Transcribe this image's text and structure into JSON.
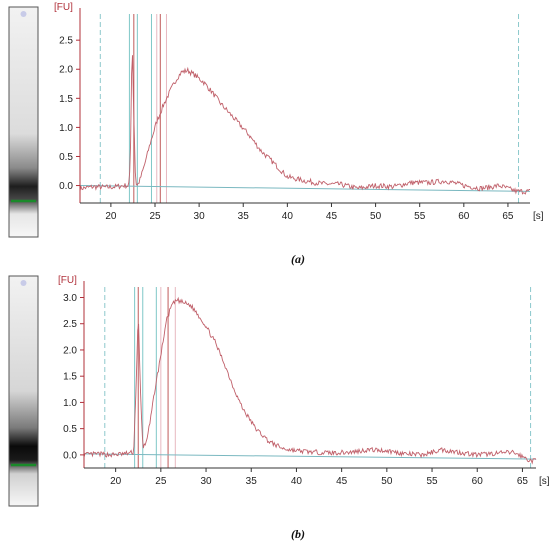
{
  "colors": {
    "trace": "#c0606a",
    "y_axis": "#b0303a",
    "x_axis": "#333333",
    "baseline": "#7ab8c0",
    "marker_teal": "#7fc7c7",
    "marker_red": "#c05a5a",
    "marker_pink": "#e8b8c0",
    "dashed": "#8cc8cc",
    "lane_line": "#1a8a2a"
  },
  "chart_data": [
    {
      "type": "line",
      "caption": "(a)",
      "ylabel": "[FU]",
      "xlabel": "[s]",
      "xlim": [
        16.5,
        67.5
      ],
      "ylim": [
        -0.3,
        2.95
      ],
      "x_ticks": [
        20,
        25,
        30,
        35,
        40,
        45,
        50,
        55,
        60,
        65
      ],
      "y_ticks": [
        "0.0",
        "0.5",
        "1.0",
        "1.5",
        "2.0",
        "2.5"
      ],
      "y_tick_values": [
        0.0,
        0.5,
        1.0,
        1.5,
        2.0,
        2.5
      ],
      "dashed_lines_x": [
        18.8,
        66.2
      ],
      "marker_lines": [
        {
          "x": 22.1,
          "kind": "teal"
        },
        {
          "x": 22.6,
          "kind": "red"
        },
        {
          "x": 23.0,
          "kind": "teal"
        },
        {
          "x": 24.6,
          "kind": "teal"
        },
        {
          "x": 25.2,
          "kind": "pink"
        },
        {
          "x": 25.6,
          "kind": "red"
        },
        {
          "x": 26.3,
          "kind": "pink"
        }
      ],
      "baseline": {
        "x": [
          16.5,
          67.5
        ],
        "y": [
          0.0,
          -0.1
        ]
      },
      "series": [
        {
          "x": [
            16.5,
            18,
            19.5,
            20.5,
            21.5,
            22.0,
            22.2,
            22.4,
            22.6,
            22.8,
            23.0,
            23.3,
            23.8,
            24.5,
            25.2,
            26.0,
            26.8,
            27.5,
            28.0,
            28.7,
            29.5,
            30.5,
            31.5,
            32.5,
            34,
            35.5,
            37,
            38.5,
            40,
            42,
            44,
            46,
            48,
            50,
            52,
            54,
            56,
            58,
            60,
            62,
            64,
            66,
            67.5
          ],
          "y": [
            -0.05,
            -0.02,
            -0.03,
            -0.02,
            0.0,
            0.0,
            0.3,
            2.6,
            1.2,
            0.05,
            0.0,
            0.1,
            0.35,
            0.75,
            1.1,
            1.4,
            1.65,
            1.85,
            1.95,
            1.98,
            1.9,
            1.78,
            1.6,
            1.4,
            1.15,
            0.9,
            0.6,
            0.38,
            0.15,
            0.08,
            0.03,
            0.02,
            -0.05,
            0.0,
            -0.02,
            0.05,
            0.05,
            0.08,
            0.0,
            -0.05,
            0.0,
            -0.1,
            -0.1
          ]
        }
      ]
    },
    {
      "type": "line",
      "caption": "(b)",
      "ylabel": "[FU]",
      "xlabel": "[s]",
      "xlim": [
        16.5,
        66.5
      ],
      "ylim": [
        -0.25,
        3.2
      ],
      "x_ticks": [
        20,
        25,
        30,
        35,
        40,
        45,
        50,
        55,
        60,
        65
      ],
      "y_ticks": [
        "0.0",
        "0.5",
        "1.0",
        "1.5",
        "2.0",
        "2.5",
        "3.0"
      ],
      "y_tick_values": [
        0.0,
        0.5,
        1.0,
        1.5,
        2.0,
        2.5,
        3.0
      ],
      "dashed_lines_x": [
        18.8,
        65.9
      ],
      "marker_lines": [
        {
          "x": 22.1,
          "kind": "teal"
        },
        {
          "x": 22.5,
          "kind": "red"
        },
        {
          "x": 23.0,
          "kind": "teal"
        },
        {
          "x": 24.5,
          "kind": "teal"
        },
        {
          "x": 25.0,
          "kind": "pink"
        },
        {
          "x": 25.8,
          "kind": "red"
        },
        {
          "x": 26.6,
          "kind": "pink"
        }
      ],
      "baseline": {
        "x": [
          16.5,
          66.5
        ],
        "y": [
          0.02,
          -0.08
        ]
      },
      "series": [
        {
          "x": [
            16.5,
            18,
            19.5,
            21,
            22.0,
            22.3,
            22.5,
            22.7,
            23.0,
            23.3,
            23.8,
            24.3,
            25.0,
            25.6,
            26.2,
            26.8,
            27.5,
            28.3,
            29.0,
            30.0,
            31.0,
            32.0,
            33.0,
            34.0,
            35.5,
            37,
            38.5,
            40,
            42,
            44,
            46,
            48,
            50,
            52,
            54,
            56,
            58,
            60,
            62,
            64,
            66,
            66.5
          ],
          "y": [
            0.0,
            0.02,
            0.0,
            0.02,
            0.05,
            1.5,
            2.75,
            1.4,
            0.15,
            0.2,
            0.6,
            1.2,
            1.9,
            2.55,
            2.85,
            2.95,
            2.9,
            2.85,
            2.7,
            2.45,
            2.15,
            1.75,
            1.3,
            0.9,
            0.5,
            0.25,
            0.12,
            0.08,
            0.05,
            0.04,
            0.05,
            0.1,
            0.08,
            0.02,
            0.0,
            0.1,
            0.05,
            0.0,
            0.03,
            0.05,
            -0.12,
            -0.1
          ]
        }
      ]
    }
  ]
}
